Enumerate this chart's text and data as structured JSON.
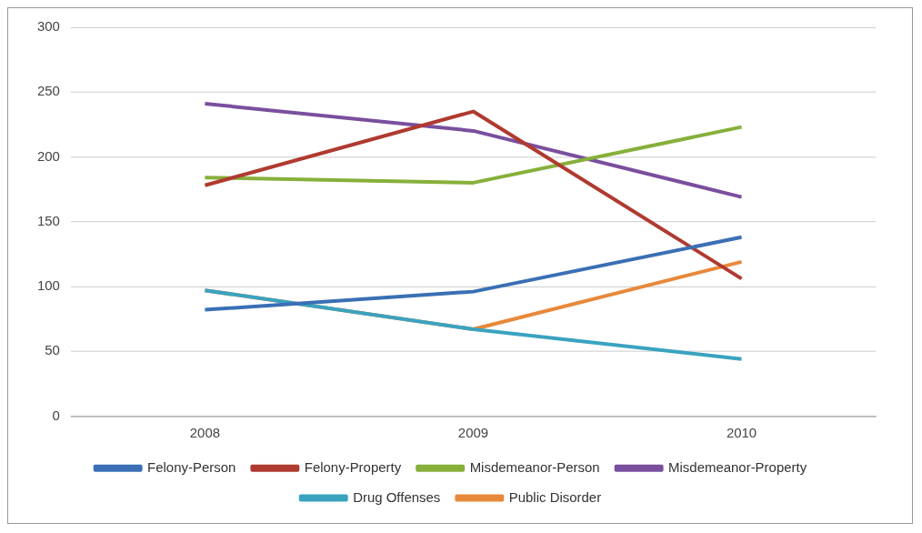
{
  "chart_data": {
    "type": "line",
    "categories": [
      "2008",
      "2009",
      "2010"
    ],
    "series": [
      {
        "name": "Felony-Person",
        "color": "#3a6fb5",
        "values": [
          82,
          96,
          138
        ]
      },
      {
        "name": "Felony-Property",
        "color": "#b03a30",
        "values": [
          178,
          235,
          106
        ]
      },
      {
        "name": "Misdemeanor-Person",
        "color": "#86b03a",
        "values": [
          184,
          180,
          223
        ]
      },
      {
        "name": "Misdemeanor-Property",
        "color": "#7a4f9e",
        "values": [
          241,
          220,
          169
        ]
      },
      {
        "name": "Drug Offenses",
        "color": "#3aa3c0",
        "values": [
          97,
          67,
          44
        ]
      },
      {
        "name": "Public Disorder",
        "color": "#e8883a",
        "values": [
          97,
          67,
          119
        ]
      }
    ],
    "ylim": [
      0,
      300
    ],
    "yticks": [
      0,
      50,
      100,
      150,
      200,
      250,
      300
    ],
    "grid": "y",
    "legend": "bottom",
    "marker": "none",
    "line_style": "solid"
  }
}
